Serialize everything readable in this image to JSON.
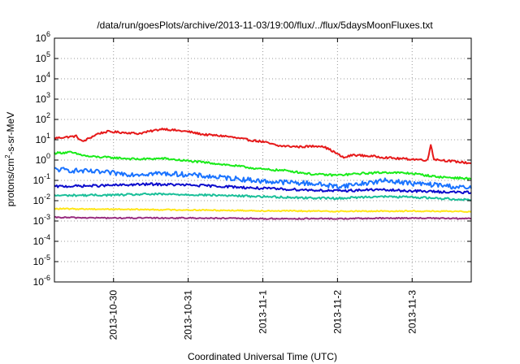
{
  "chart_data": {
    "type": "line",
    "title": "/data/run/goesPlots/archive/2013-11-03/19:00/flux/../flux/5daysMoonFluxes.txt",
    "xlabel": "Coordinated Universal Time (UTC)",
    "ylabel": "protons/cm²-s-sr-MeV",
    "yscale": "log",
    "ylim_exponents": [
      -6,
      6
    ],
    "y_tick_exponents": [
      -6,
      -5,
      -4,
      -3,
      -2,
      -1,
      0,
      1,
      2,
      3,
      4,
      5,
      6
    ],
    "xlim": [
      "2013-10-29 05:00",
      "2013-11-03 19:00"
    ],
    "x_ticks": [
      {
        "label": "2013-10-30",
        "date": "2013-10-30 00:00"
      },
      {
        "label": "2013-10-31",
        "date": "2013-10-31 00:00"
      },
      {
        "label": "2013-11-1",
        "date": "2013-11-01 00:00"
      },
      {
        "label": "2013-11-2",
        "date": "2013-11-02 00:00"
      },
      {
        "label": "2013-11-3",
        "date": "2013-11-03 00:00"
      }
    ],
    "grid": true,
    "legend": false,
    "series": [
      {
        "color": "#e6191a",
        "x": [
          "2013-10-29 05:00",
          "2013-10-29 12:00",
          "2013-10-29 14:00",
          "2013-10-29 19:00",
          "2013-10-29 22:00",
          "2013-10-30 05:00",
          "2013-10-30 08:00",
          "2013-10-30 16:00",
          "2013-10-30 19:00",
          "2013-10-31 00:00",
          "2013-10-31 05:00",
          "2013-10-31 12:00",
          "2013-10-31 19:00",
          "2013-11-01 00:00",
          "2013-11-01 05:00",
          "2013-11-01 12:00",
          "2013-11-01 19:00",
          "2013-11-01 22:00",
          "2013-11-02 02:00",
          "2013-11-02 05:00",
          "2013-11-02 12:00",
          "2013-11-02 19:00",
          "2013-11-03 00:00",
          "2013-11-03 05:00",
          "2013-11-03 06:00",
          "2013-11-03 07:00",
          "2013-11-03 12:00",
          "2013-11-03 19:00"
        ],
        "y": [
          12,
          15,
          8,
          20,
          25,
          22,
          20,
          35,
          30,
          25,
          18,
          15,
          10,
          8,
          5,
          4.5,
          5,
          3,
          1.3,
          1.8,
          1.5,
          1.2,
          1.1,
          1.0,
          6,
          1.1,
          0.9,
          0.7
        ]
      },
      {
        "color": "#1aeb1a",
        "x": [
          "2013-10-29 05:00",
          "2013-10-29 10:00",
          "2013-10-29 16:00",
          "2013-10-30 00:00",
          "2013-10-30 08:00",
          "2013-10-30 16:00",
          "2013-10-31 00:00",
          "2013-10-31 08:00",
          "2013-10-31 16:00",
          "2013-11-01 00:00",
          "2013-11-01 08:00",
          "2013-11-01 16:00",
          "2013-11-02 00:00",
          "2013-11-02 08:00",
          "2013-11-02 16:00",
          "2013-11-03 00:00",
          "2013-11-03 08:00",
          "2013-11-03 19:00"
        ],
        "y": [
          2.2,
          2.4,
          1.5,
          1.3,
          1.1,
          1.2,
          0.9,
          0.7,
          0.5,
          0.35,
          0.3,
          0.2,
          0.18,
          0.22,
          0.25,
          0.22,
          0.15,
          0.12
        ]
      },
      {
        "color": "#1a73ff",
        "x": [
          "2013-10-29 05:00",
          "2013-10-29 12:00",
          "2013-10-29 20:00",
          "2013-10-30 06:00",
          "2013-10-30 14:00",
          "2013-10-30 22:00",
          "2013-10-31 08:00",
          "2013-10-31 16:00",
          "2013-11-01 00:00",
          "2013-11-01 08:00",
          "2013-11-01 16:00",
          "2013-11-02 00:00",
          "2013-11-02 08:00",
          "2013-11-02 16:00",
          "2013-11-03 00:00",
          "2013-11-03 08:00",
          "2013-11-03 19:00"
        ],
        "y": [
          0.35,
          0.3,
          0.25,
          0.2,
          0.22,
          0.2,
          0.15,
          0.12,
          0.09,
          0.08,
          0.07,
          0.05,
          0.07,
          0.1,
          0.07,
          0.06,
          0.04
        ]
      },
      {
        "color": "#0d0dcc",
        "x": [
          "2013-10-29 05:00",
          "2013-10-29 20:00",
          "2013-10-30 12:00",
          "2013-10-30 22:00",
          "2013-10-31 12:00",
          "2013-11-01 00:00",
          "2013-11-01 12:00",
          "2013-11-02 00:00",
          "2013-11-02 12:00",
          "2013-11-03 00:00",
          "2013-11-03 19:00"
        ],
        "y": [
          0.05,
          0.055,
          0.065,
          0.06,
          0.05,
          0.04,
          0.035,
          0.03,
          0.035,
          0.03,
          0.025
        ]
      },
      {
        "color": "#1abf99",
        "x": [
          "2013-10-29 05:00",
          "2013-10-30 00:00",
          "2013-10-30 12:00",
          "2013-10-31 00:00",
          "2013-10-31 12:00",
          "2013-11-01 00:00",
          "2013-11-01 12:00",
          "2013-11-02 00:00",
          "2013-11-02 12:00",
          "2013-11-03 00:00",
          "2013-11-03 19:00"
        ],
        "y": [
          0.018,
          0.019,
          0.021,
          0.02,
          0.018,
          0.016,
          0.014,
          0.013,
          0.016,
          0.015,
          0.011
        ]
      },
      {
        "color": "#ffe619",
        "x": [
          "2013-10-29 05:00",
          "2013-10-30 00:00",
          "2013-10-31 00:00",
          "2013-11-01 00:00",
          "2013-11-02 00:00",
          "2013-11-03 00:00",
          "2013-11-03 19:00"
        ],
        "y": [
          0.004,
          0.0038,
          0.0035,
          0.0032,
          0.003,
          0.0031,
          0.0029
        ]
      },
      {
        "color": "#992e80",
        "x": [
          "2013-10-29 05:00",
          "2013-10-30 00:00",
          "2013-10-31 00:00",
          "2013-11-01 00:00",
          "2013-11-02 00:00",
          "2013-11-03 00:00",
          "2013-11-03 19:00"
        ],
        "y": [
          0.0015,
          0.0014,
          0.0014,
          0.0013,
          0.0013,
          0.0014,
          0.0013
        ]
      }
    ]
  }
}
